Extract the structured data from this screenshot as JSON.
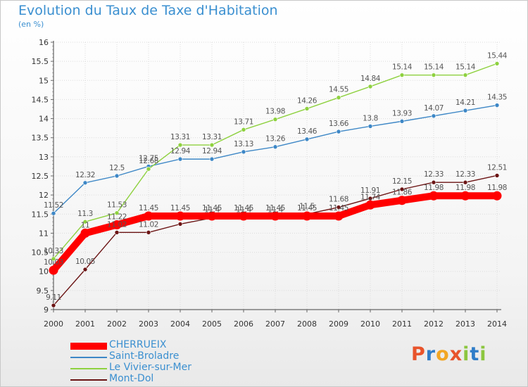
{
  "title": "Evolution du Taux de Taxe d'Habitation",
  "unit": "(en %)",
  "logo": {
    "letters": [
      "P",
      "r",
      "o",
      "x",
      "i",
      "t",
      "i"
    ],
    "colors": [
      "#e8532b",
      "#2f7dc8",
      "#f2a623",
      "#e8532b",
      "#8cc63f",
      "#2f7dc8",
      "#8cc63f"
    ]
  },
  "chart_data": {
    "type": "line",
    "title": "Evolution du Taux de Taxe d'Habitation",
    "ylabel": "(en %)",
    "xlabel": "",
    "x": [
      "2000",
      "2001",
      "2002",
      "2003",
      "2004",
      "2005",
      "2006",
      "2007",
      "2008",
      "2009",
      "2010",
      "2011",
      "2012",
      "2013",
      "2014"
    ],
    "ylim": [
      9,
      16
    ],
    "yticks": [
      "9",
      "9.5",
      "10",
      "10.5",
      "11",
      "11.5",
      "12",
      "12.5",
      "13",
      "13.5",
      "14",
      "14.5",
      "15",
      "15.5",
      "16"
    ],
    "grid": true,
    "legend_position": "bottom-left",
    "series": [
      {
        "name": "CHERRUEIX",
        "color": "#ff0000",
        "values": [
          10.03,
          11.0,
          11.22,
          11.45,
          11.45,
          11.45,
          11.45,
          11.45,
          11.45,
          11.45,
          11.74,
          11.86,
          11.98,
          11.98,
          11.98
        ],
        "labels": [
          "10.03",
          "11",
          "11.22",
          "11.45",
          "11.45",
          "11.45",
          "11.45",
          "11.45",
          "11.45",
          "11.45",
          "11.74",
          "11.86",
          "11.98",
          "11.98",
          "11.98"
        ]
      },
      {
        "name": "Saint-Broladre",
        "color": "#3d87c6",
        "values": [
          11.52,
          12.32,
          12.5,
          12.75,
          12.94,
          12.94,
          13.13,
          13.26,
          13.46,
          13.66,
          13.8,
          13.93,
          14.07,
          14.21,
          14.35
        ],
        "labels": [
          "11.52",
          "12.32",
          "12.5",
          "12.75",
          "12.94",
          "12.94",
          "13.13",
          "13.26",
          "13.46",
          "13.66",
          "13.8",
          "13.93",
          "14.07",
          "14.21",
          "14.35"
        ]
      },
      {
        "name": "Le Vivier-sur-Mer",
        "color": "#8ed13f",
        "values": [
          10.33,
          11.3,
          11.53,
          12.68,
          13.31,
          13.31,
          13.71,
          13.98,
          14.26,
          14.55,
          14.84,
          15.14,
          15.14,
          15.14,
          15.44
        ],
        "labels": [
          "10.33",
          "11.3",
          "11.53",
          "12.68",
          "13.31",
          "13.31",
          "13.71",
          "13.98",
          "14.26",
          "14.55",
          "14.84",
          "15.14",
          "15.14",
          "15.14",
          "15.44"
        ]
      },
      {
        "name": "Mont-Dol",
        "color": "#6b1414",
        "values": [
          9.11,
          10.05,
          11.02,
          11.02,
          11.24,
          11.4,
          11.4,
          11.4,
          11.5,
          11.68,
          11.91,
          12.15,
          12.33,
          12.33,
          12.51
        ],
        "labels": [
          "9.11",
          "10.05",
          "11.02",
          "11.02",
          "",
          "11.4",
          "11.4",
          "11.4",
          "11.5",
          "11.68",
          "11.91",
          "12.15",
          "12.33",
          "12.33",
          "12.51"
        ]
      }
    ]
  }
}
